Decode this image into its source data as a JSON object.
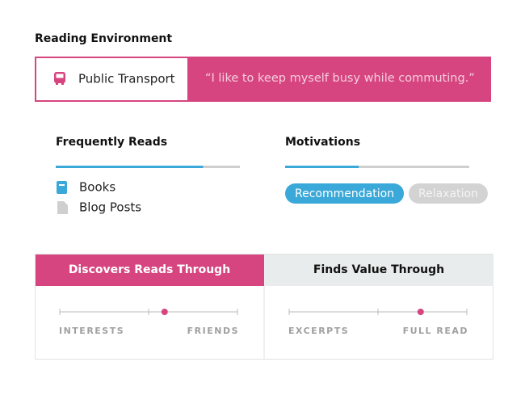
{
  "reading_environment": {
    "title": "Reading Environment",
    "location": "Public Transport",
    "quote": "“I like to keep myself busy while commuting.”"
  },
  "frequently_reads": {
    "title": "Frequently Reads",
    "progress": 80,
    "items": [
      "Books",
      "Blog Posts"
    ]
  },
  "motivations": {
    "title": "Motivations",
    "progress": 40,
    "tags": [
      {
        "label": "Recommendation",
        "active": true
      },
      {
        "label": "Relaxation",
        "active": false
      }
    ]
  },
  "scales": [
    {
      "title": "Discovers Reads Through",
      "highlighted": true,
      "left": "INTERESTS",
      "right": "FRIENDS",
      "value": 59
    },
    {
      "title": "Finds Value Through",
      "highlighted": false,
      "left": "EXCERPTS",
      "right": "FULL READ",
      "value": 74
    }
  ]
}
